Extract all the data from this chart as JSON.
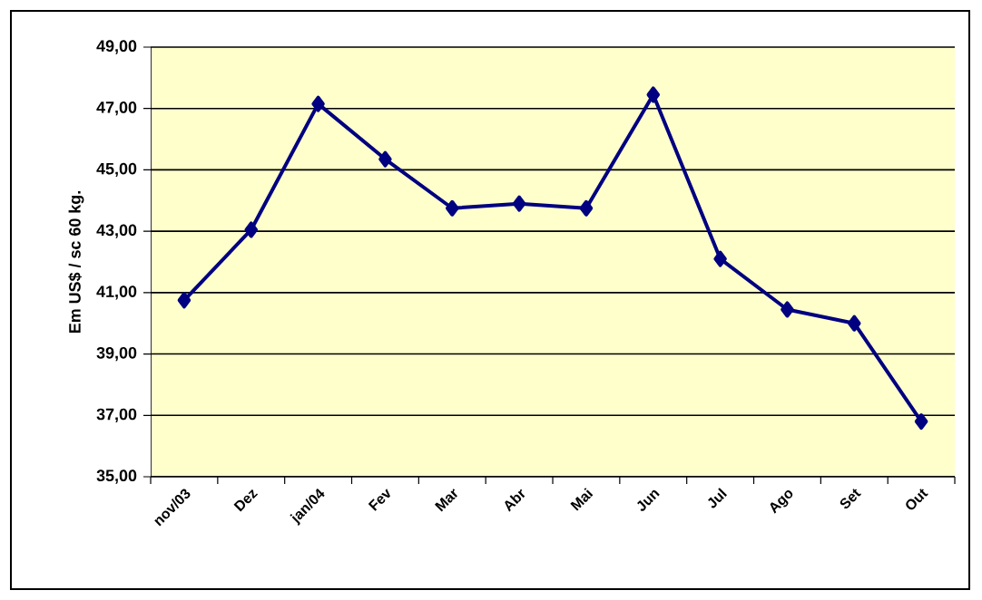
{
  "chart_data": {
    "type": "line",
    "ylabel": "Em US$ / sc 60 kg.",
    "categories": [
      "nov/03",
      "Dez",
      "jan/04",
      "Fev",
      "Mar",
      "Abr",
      "Mai",
      "Jun",
      "Jul",
      "Ago",
      "Set",
      "Out"
    ],
    "series": [
      {
        "color": "#000080",
        "values": [
          40.75,
          43.05,
          47.15,
          45.35,
          43.75,
          43.9,
          43.75,
          47.45,
          42.1,
          40.45,
          40.0,
          36.8
        ]
      }
    ],
    "ylim": [
      35,
      49
    ],
    "yticks": [
      {
        "value": 35,
        "label": "35,00"
      },
      {
        "value": 37,
        "label": "37,00"
      },
      {
        "value": 39,
        "label": "39,00"
      },
      {
        "value": 41,
        "label": "41,00"
      },
      {
        "value": 43,
        "label": "43,00"
      },
      {
        "value": 45,
        "label": "45,00"
      },
      {
        "value": 47,
        "label": "47,00"
      },
      {
        "value": 49,
        "label": "49,00"
      }
    ],
    "grid": "y",
    "marker": "diamond"
  }
}
